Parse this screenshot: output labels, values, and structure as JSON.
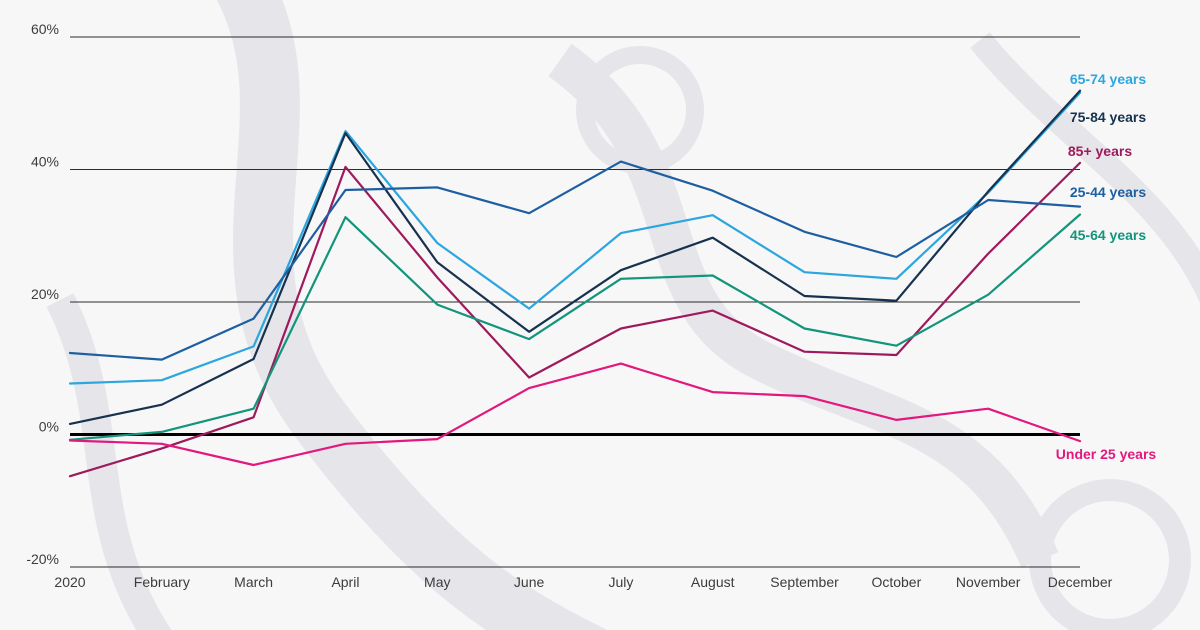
{
  "chart_data": {
    "type": "line",
    "categories": [
      "2020",
      "February",
      "March",
      "April",
      "May",
      "June",
      "July",
      "August",
      "September",
      "October",
      "November",
      "December"
    ],
    "ylim": [
      -20,
      60
    ],
    "yticks": [
      -20,
      0,
      20,
      40,
      60
    ],
    "ytick_labels": [
      "-20%",
      "0%",
      "20%",
      "40%",
      "60%"
    ],
    "grid": true,
    "legend_placement": "right, inline at line ends",
    "series": [
      {
        "name": "65-74 years",
        "color": "#2ba6de",
        "values": [
          7.7,
          8.2,
          13.3,
          45.8,
          28.9,
          19.0,
          30.4,
          33.1,
          24.5,
          23.5,
          36.5,
          51.6
        ]
      },
      {
        "name": "75-84 years",
        "color": "#17324f",
        "values": [
          1.6,
          4.5,
          11.4,
          45.5,
          26.0,
          15.5,
          24.8,
          29.7,
          20.9,
          20.2,
          36.7,
          51.9
        ]
      },
      {
        "name": "85+ years",
        "color": "#9e1a5c",
        "values": [
          -6.3,
          -2.1,
          2.6,
          40.4,
          23.7,
          8.6,
          16.0,
          18.7,
          12.5,
          12.0,
          27.3,
          41.0
        ]
      },
      {
        "name": "25-44 years",
        "color": "#1d5fa0",
        "values": [
          12.3,
          11.3,
          17.5,
          36.9,
          37.3,
          33.4,
          41.2,
          36.8,
          30.6,
          26.8,
          35.4,
          34.4
        ]
      },
      {
        "name": "45-64 years",
        "color": "#12957a",
        "values": [
          -0.8,
          0.4,
          3.9,
          32.8,
          19.6,
          14.4,
          23.5,
          24.0,
          16.0,
          13.4,
          21.1,
          33.2
        ]
      },
      {
        "name": "Under 25 years",
        "color": "#e2187e",
        "values": [
          -0.9,
          -1.4,
          -4.6,
          -1.4,
          -0.7,
          7.0,
          10.7,
          6.4,
          5.8,
          2.2,
          3.9,
          -1.0
        ]
      }
    ]
  }
}
